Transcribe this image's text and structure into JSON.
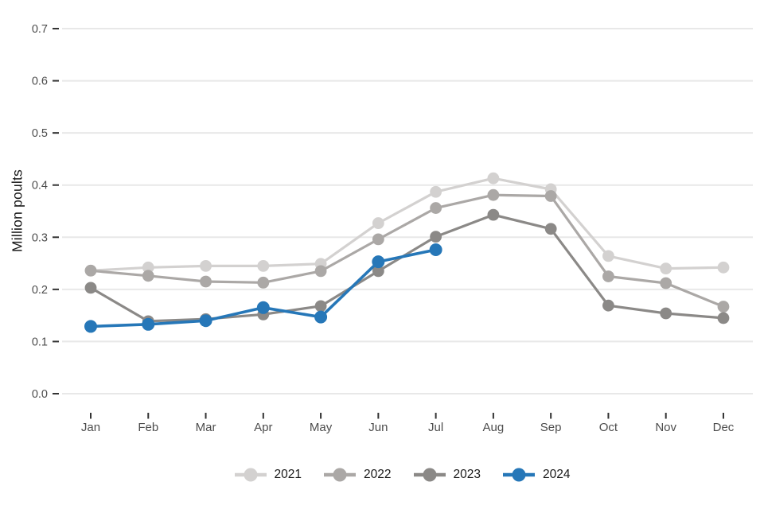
{
  "chart_data": {
    "type": "line",
    "title": "",
    "xlabel": "",
    "ylabel": "Million poults",
    "categories": [
      "Jan",
      "Feb",
      "Mar",
      "Apr",
      "May",
      "Jun",
      "Jul",
      "Aug",
      "Sep",
      "Oct",
      "Nov",
      "Dec"
    ],
    "y_tick_labels": [
      "0.0",
      "0.1",
      "0.2",
      "0.3",
      "0.4",
      "0.5",
      "0.6",
      "0.7"
    ],
    "ylim": [
      0.0,
      0.7
    ],
    "grid": "horizontal-only",
    "legend_position": "bottom",
    "series": [
      {
        "name": "2021",
        "color": "#d3d1d0",
        "values": [
          0.236,
          0.242,
          0.245,
          0.245,
          0.249,
          0.327,
          0.387,
          0.413,
          0.392,
          0.264,
          0.24,
          0.242
        ]
      },
      {
        "name": "2022",
        "color": "#aba8a6",
        "values": [
          0.236,
          0.226,
          0.215,
          0.213,
          0.235,
          0.296,
          0.356,
          0.381,
          0.379,
          0.225,
          0.212,
          0.167
        ]
      },
      {
        "name": "2023",
        "color": "#8b8987",
        "values": [
          0.203,
          0.139,
          0.143,
          0.152,
          0.168,
          0.235,
          0.301,
          0.343,
          0.316,
          0.169,
          0.154,
          0.145
        ]
      },
      {
        "name": "2024",
        "color": "#2677b8",
        "values": [
          0.129,
          0.133,
          0.14,
          0.165,
          0.147,
          0.253,
          0.276,
          null,
          null,
          null,
          null,
          null
        ]
      }
    ]
  },
  "colors": {
    "background": "#ffffff",
    "gridline": "#e8e8e8",
    "tick_mark": "#333333",
    "axis_text": "#4d4d4d",
    "title_text": "#1a1a1a"
  }
}
